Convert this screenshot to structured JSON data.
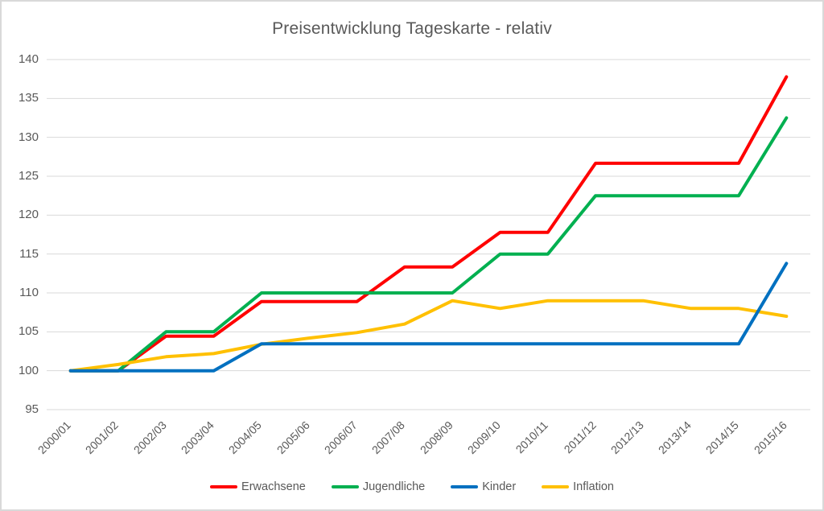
{
  "chart": {
    "title": "Preisentwicklung Tageskarte - relativ"
  },
  "chart_data": {
    "type": "line",
    "title": "Preisentwicklung Tageskarte - relativ",
    "categories": [
      "2000/01",
      "2001/02",
      "2002/03",
      "2003/04",
      "2004/05",
      "2005/06",
      "2006/07",
      "2007/08",
      "2008/09",
      "2009/10",
      "2010/11",
      "2011/12",
      "2012/13",
      "2013/14",
      "2014/15",
      "2015/16"
    ],
    "series": [
      {
        "id": "erwachsene",
        "name": "Erwachsene",
        "color": "#FF0000",
        "values": [
          100,
          100,
          104.44,
          104.44,
          108.89,
          108.89,
          108.89,
          113.33,
          113.33,
          117.78,
          117.78,
          126.67,
          126.67,
          126.67,
          126.67,
          137.78
        ]
      },
      {
        "id": "jugendliche",
        "name": "Jugendliche",
        "color": "#00B050",
        "values": [
          100,
          100,
          105,
          105,
          110,
          110,
          110,
          110,
          110,
          115,
          115,
          122.5,
          122.5,
          122.5,
          122.5,
          132.5
        ]
      },
      {
        "id": "kinder",
        "name": "Kinder",
        "color": "#0070C0",
        "values": [
          100,
          100,
          100,
          100,
          103.45,
          103.45,
          103.45,
          103.45,
          103.45,
          103.45,
          103.45,
          103.45,
          103.45,
          103.45,
          103.45,
          113.79
        ]
      },
      {
        "id": "inflation",
        "name": "Inflation",
        "color": "#FFC000",
        "values": [
          100,
          100.8,
          101.8,
          102.2,
          103.4,
          104.2,
          104.9,
          106,
          109,
          108,
          109,
          109,
          109,
          108,
          108,
          107
        ]
      }
    ],
    "draw_order": [
      "erwachsene",
      "jugendliche",
      "inflation",
      "kinder"
    ],
    "ylim": [
      95,
      140
    ],
    "yticks": [
      95,
      100,
      105,
      110,
      115,
      120,
      125,
      130,
      135,
      140
    ],
    "xlabel": "",
    "ylabel": "",
    "grid": true,
    "legend_position": "bottom",
    "text_color": "#595959",
    "gridline_color": "#D9D9D9",
    "border_color": "#D9D9D9",
    "background_color": "#FFFFFF"
  }
}
